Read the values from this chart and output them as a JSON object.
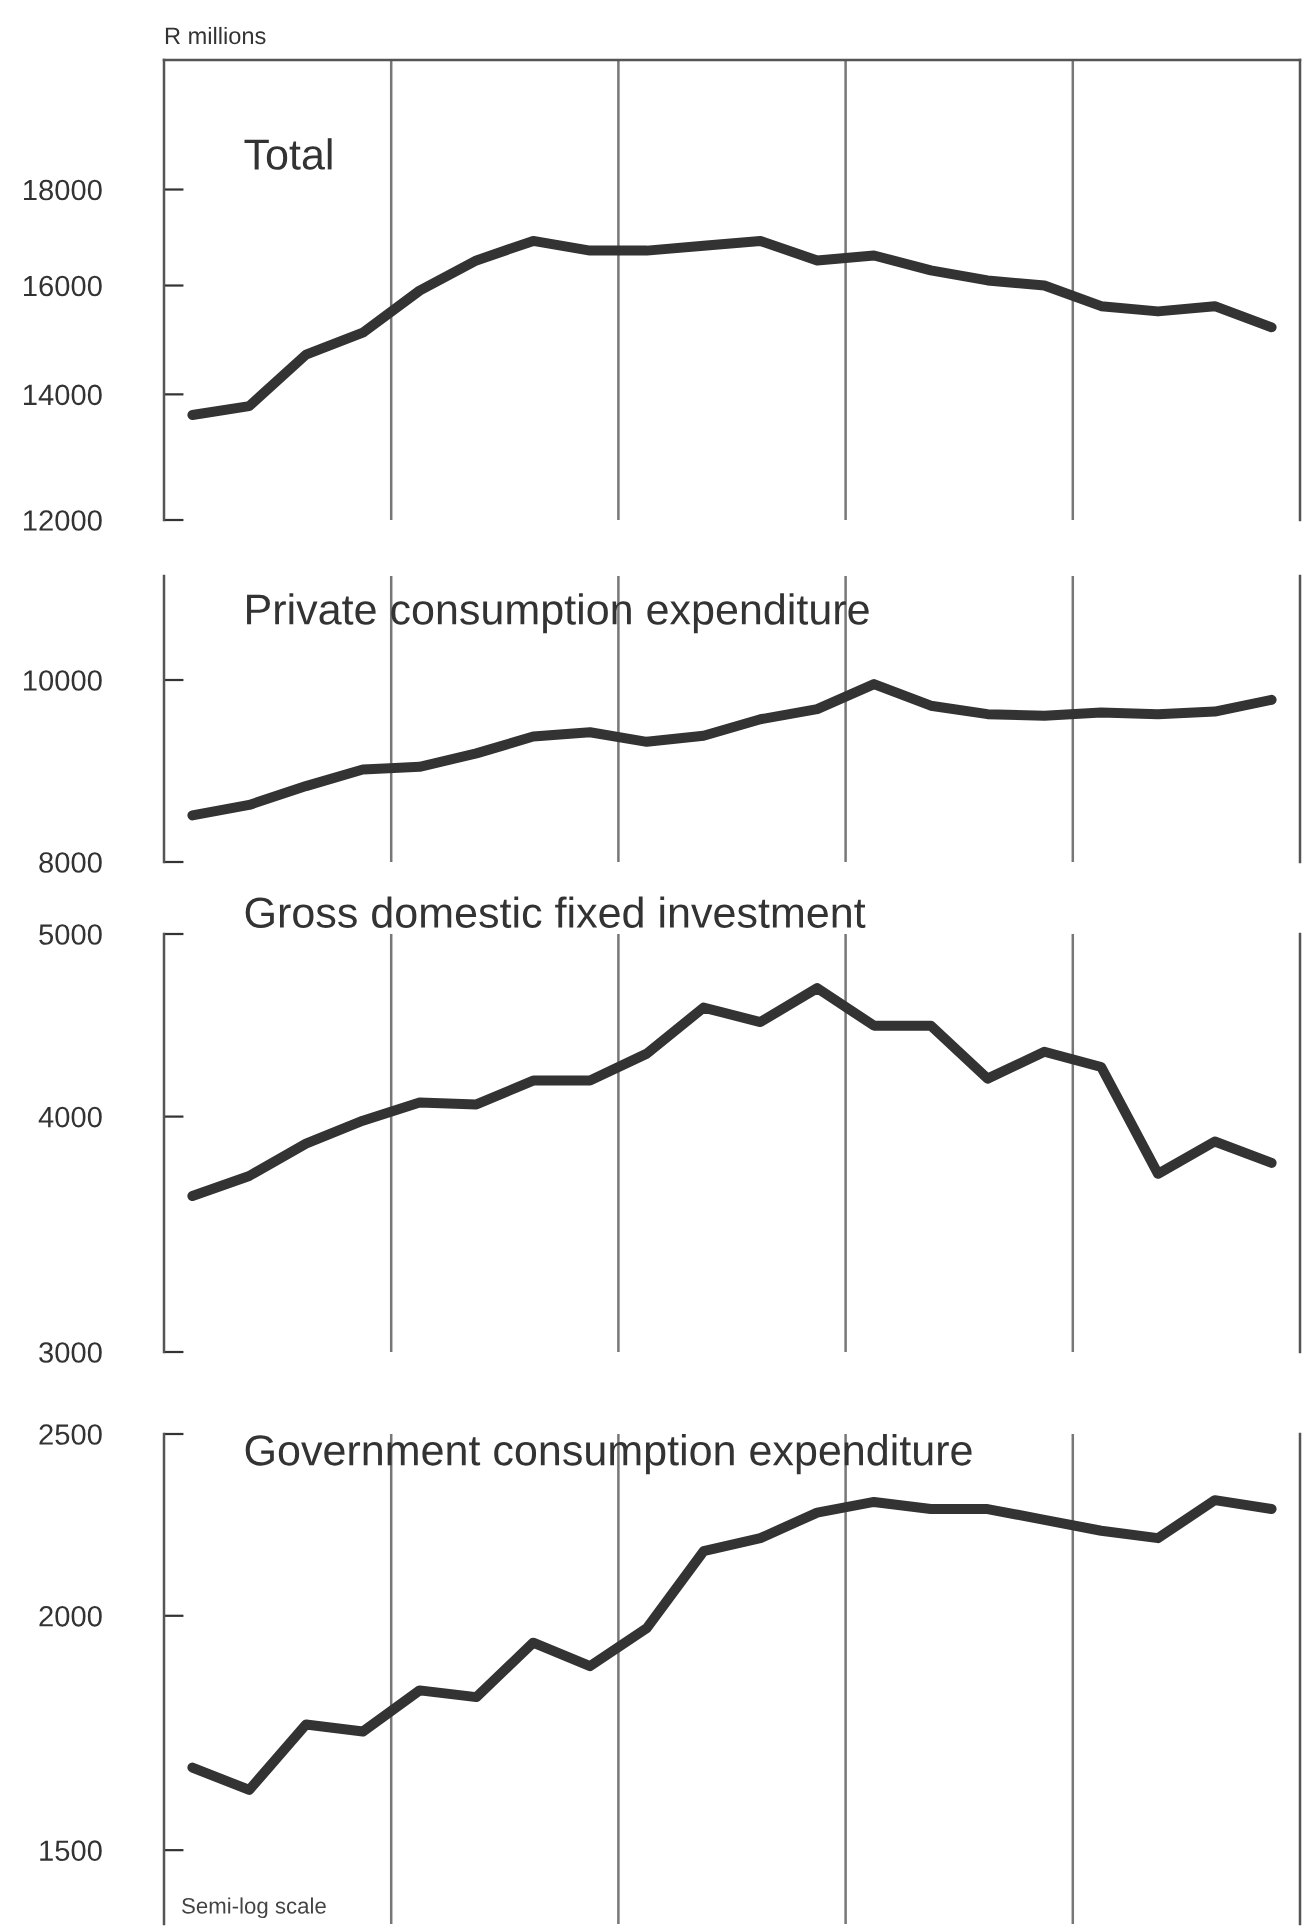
{
  "chart_data": [
    {
      "type": "line",
      "ylabel": "R millions",
      "log": true,
      "grid": "x",
      "tick_labels": "y",
      "line_style": "solid",
      "marker": "none",
      "categories": [
        null,
        null,
        null,
        null,
        null,
        null,
        null,
        null,
        null,
        null,
        null,
        null,
        null,
        null,
        null,
        null,
        null,
        null,
        null,
        null
      ],
      "ylim": [
        12000,
        21100
      ],
      "yticks": [
        12000,
        14000,
        16000,
        18000
      ],
      "series": [
        {
          "name": "Total",
          "color": "#333333",
          "values": [
            13650,
            13800,
            14700,
            15100,
            15900,
            16500,
            16900,
            16700,
            16700,
            16800,
            16900,
            16500,
            16600,
            16300,
            16100,
            16000,
            15600,
            15500,
            15600,
            15200
          ]
        }
      ]
    },
    {
      "type": "line",
      "log": true,
      "grid": "x",
      "tick_labels": "y",
      "line_style": "solid",
      "marker": "none",
      "categories": [
        null,
        null,
        null,
        null,
        null,
        null,
        null,
        null,
        null,
        null,
        null,
        null,
        null,
        null,
        null,
        null,
        null,
        null,
        null,
        null
      ],
      "ylim": [
        8000,
        11360
      ],
      "yticks": [
        8000,
        10000
      ],
      "series": [
        {
          "name": "Private consumption expenditure",
          "color": "#333333",
          "values": [
            8470,
            8580,
            8780,
            8960,
            8990,
            9140,
            9330,
            9380,
            9270,
            9340,
            9530,
            9650,
            9950,
            9690,
            9590,
            9570,
            9610,
            9590,
            9620,
            9760
          ]
        }
      ]
    },
    {
      "type": "line",
      "log": true,
      "grid": "x",
      "tick_labels": "y",
      "line_style": "solid",
      "marker": "none",
      "categories": [
        null,
        null,
        null,
        null,
        null,
        null,
        null,
        null,
        null,
        null,
        null,
        null,
        null,
        null,
        null,
        null,
        null,
        null,
        null,
        null
      ],
      "ylim": [
        3000,
        5000
      ],
      "yticks": [
        3000,
        4000,
        5000
      ],
      "series": [
        {
          "name": "Gross domestic fixed investment",
          "color": "#333333",
          "values": [
            3630,
            3720,
            3870,
            3980,
            4070,
            4060,
            4180,
            4180,
            4320,
            4570,
            4490,
            4680,
            4470,
            4470,
            4190,
            4330,
            4250,
            3730,
            3880,
            3780
          ]
        }
      ]
    },
    {
      "type": "line",
      "log": true,
      "grid": "x",
      "tick_labels": "y",
      "line_style": "solid",
      "marker": "none",
      "categories": [
        null,
        null,
        null,
        null,
        null,
        null,
        null,
        null,
        null,
        null,
        null,
        null,
        null,
        null,
        null,
        null,
        null,
        null,
        null,
        null
      ],
      "ylim": [
        1370,
        2500
      ],
      "yticks": [
        1500,
        2000,
        2500
      ],
      "annotations": [
        "Semi-log scale"
      ],
      "series": [
        {
          "name": "Government consumption expenditure",
          "color": "#333333",
          "values": [
            1660,
            1615,
            1750,
            1735,
            1825,
            1810,
            1935,
            1880,
            1970,
            2165,
            2200,
            2270,
            2300,
            2280,
            2280,
            2250,
            2220,
            2200,
            2305,
            2280
          ]
        }
      ]
    }
  ]
}
